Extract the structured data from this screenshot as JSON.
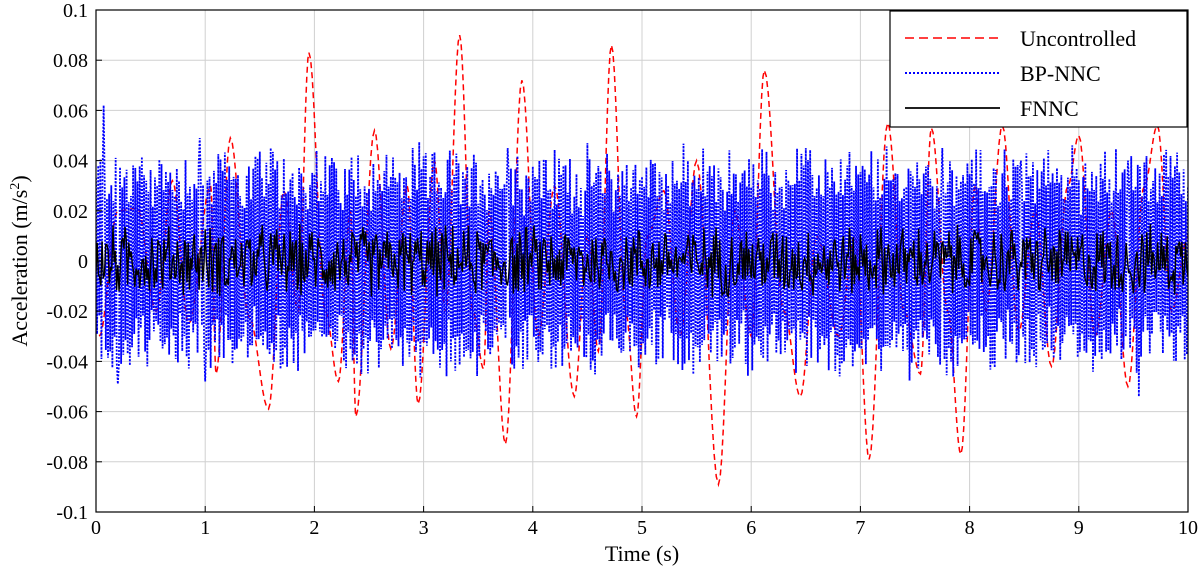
{
  "chart_data": {
    "type": "line",
    "title": "",
    "xlabel": "Time (s)",
    "ylabel": "Acceleration (m/s",
    "ylabel_sup": "2",
    "ylabel_close": ")",
    "xlim": [
      0,
      10
    ],
    "ylim": [
      -0.1,
      0.1
    ],
    "grid": true,
    "legend_position": "top-right",
    "x_ticks": [
      "0",
      "1",
      "2",
      "3",
      "4",
      "5",
      "6",
      "7",
      "8",
      "9",
      "10"
    ],
    "y_ticks": [
      "0.1",
      "0.08",
      "0.06",
      "0.04",
      "0.02",
      "0",
      "-0.02",
      "-0.04",
      "-0.06",
      "-0.08",
      "-0.1"
    ],
    "series": [
      {
        "name": "Uncontrolled",
        "color": "#ff0000",
        "style": "dashed",
        "peaks": [
          [
            0.03,
            -0.03
          ],
          [
            0.2,
            0.02
          ],
          [
            0.38,
            0.021
          ],
          [
            0.55,
            -0.02
          ],
          [
            0.7,
            0.032
          ],
          [
            0.85,
            -0.025
          ],
          [
            1.05,
            0.03
          ],
          [
            1.1,
            -0.045
          ],
          [
            1.23,
            0.049
          ],
          [
            1.4,
            -0.022
          ],
          [
            1.58,
            -0.059
          ],
          [
            1.72,
            0.028
          ],
          [
            1.85,
            -0.02
          ],
          [
            1.95,
            0.083
          ],
          [
            2.1,
            -0.02
          ],
          [
            2.22,
            -0.048
          ],
          [
            2.33,
            0.02
          ],
          [
            2.38,
            -0.062
          ],
          [
            2.55,
            0.052
          ],
          [
            2.7,
            -0.035
          ],
          [
            2.85,
            0.03
          ],
          [
            2.95,
            -0.057
          ],
          [
            3.1,
            0.04
          ],
          [
            3.2,
            -0.02
          ],
          [
            3.33,
            0.09
          ],
          [
            3.45,
            -0.02
          ],
          [
            3.55,
            -0.043
          ],
          [
            3.6,
            0.02
          ],
          [
            3.75,
            -0.073
          ],
          [
            3.9,
            0.072
          ],
          [
            4.05,
            -0.03
          ],
          [
            4.2,
            0.03
          ],
          [
            4.38,
            -0.054
          ],
          [
            4.5,
            0.01
          ],
          [
            4.6,
            -0.036
          ],
          [
            4.72,
            0.086
          ],
          [
            4.85,
            -0.02
          ],
          [
            4.95,
            -0.062
          ],
          [
            5.05,
            0.01
          ],
          [
            5.2,
            0.028
          ],
          [
            5.35,
            -0.03
          ],
          [
            5.5,
            0.04
          ],
          [
            5.7,
            -0.089
          ],
          [
            5.85,
            0.02
          ],
          [
            6.0,
            -0.03
          ],
          [
            6.12,
            0.076
          ],
          [
            6.3,
            -0.02
          ],
          [
            6.45,
            -0.054
          ],
          [
            6.6,
            0.01
          ],
          [
            6.8,
            -0.03
          ],
          [
            6.95,
            0.01
          ],
          [
            7.08,
            -0.079
          ],
          [
            7.25,
            0.055
          ],
          [
            7.4,
            -0.02
          ],
          [
            7.55,
            -0.045
          ],
          [
            7.65,
            0.053
          ],
          [
            7.8,
            -0.02
          ],
          [
            7.92,
            -0.077
          ],
          [
            8.05,
            0.03
          ],
          [
            8.15,
            -0.02
          ],
          [
            8.3,
            0.054
          ],
          [
            8.45,
            -0.028
          ],
          [
            8.6,
            0.02
          ],
          [
            8.75,
            -0.042
          ],
          [
            8.9,
            0.03
          ],
          [
            9.0,
            0.05
          ],
          [
            9.15,
            -0.03
          ],
          [
            9.3,
            0.02
          ],
          [
            9.45,
            -0.05
          ],
          [
            9.6,
            0.03
          ],
          [
            9.72,
            0.054
          ],
          [
            9.85,
            -0.02
          ],
          [
            10.0,
            0.01
          ]
        ]
      },
      {
        "name": "BP-NNC",
        "color": "#0000ff",
        "style": "dotted",
        "amplitude": 0.042,
        "notable_peaks": [
          [
            0.07,
            0.062
          ],
          [
            0.2,
            -0.049
          ],
          [
            0.95,
            0.049
          ],
          [
            1.0,
            -0.048
          ],
          [
            2.9,
            0.045
          ],
          [
            3.77,
            0.045
          ],
          [
            7.75,
            0.045
          ],
          [
            8.47,
            0.04
          ],
          [
            9.45,
            0.04
          ],
          [
            9.55,
            -0.054
          ]
        ]
      },
      {
        "name": "FNNC",
        "color": "#000000",
        "style": "solid",
        "amplitude": 0.016
      }
    ]
  }
}
